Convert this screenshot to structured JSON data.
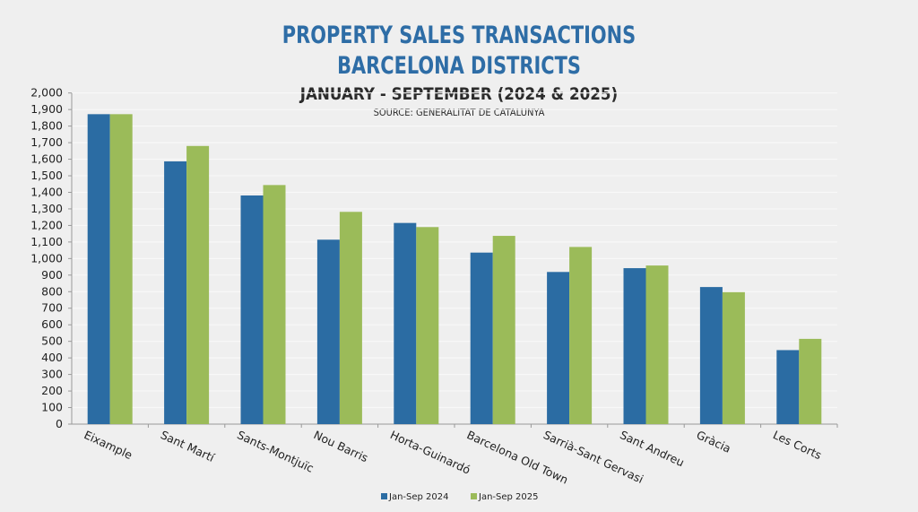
{
  "chart_data": {
    "type": "bar",
    "title": [
      "PROPERTY SALES TRANSACTIONS",
      "BARCELONA DISTRICTS"
    ],
    "subtitle": "JANUARY - SEPTEMBER (2024 & 2025)",
    "source": "SOURCE: GENERALITAT DE CATALUNYA",
    "xlabel": "",
    "ylabel": "",
    "ylim": [
      0,
      2000
    ],
    "yticks": [
      "0",
      "100",
      "200",
      "300",
      "400",
      "500",
      "600",
      "700",
      "800",
      "900",
      "1,000",
      "1,100",
      "1,200",
      "1,300",
      "1,400",
      "1,500",
      "1,600",
      "1,700",
      "1,800",
      "1,900",
      "2,000"
    ],
    "grid": true,
    "legend_position": "bottom",
    "categories": [
      "Eixample",
      "Sant Martí",
      "Sants-Montjuïc",
      "Nou Barris",
      "Horta-Guinardó",
      "Barcelona Old Town",
      "Sarrià-Sant Gervasi",
      "Sant Andreu",
      "Gràcia",
      "Les Corts"
    ],
    "series": [
      {
        "name": "Jan-Sep 2024",
        "color": "#2b6ca3",
        "values": [
          1872,
          1587,
          1381,
          1114,
          1215,
          1036,
          919,
          942,
          828,
          447
        ]
      },
      {
        "name": "Jan-Sep 2025",
        "color": "#9bbb59",
        "values": [
          1872,
          1680,
          1444,
          1282,
          1190,
          1137,
          1070,
          958,
          797,
          515
        ]
      }
    ]
  }
}
